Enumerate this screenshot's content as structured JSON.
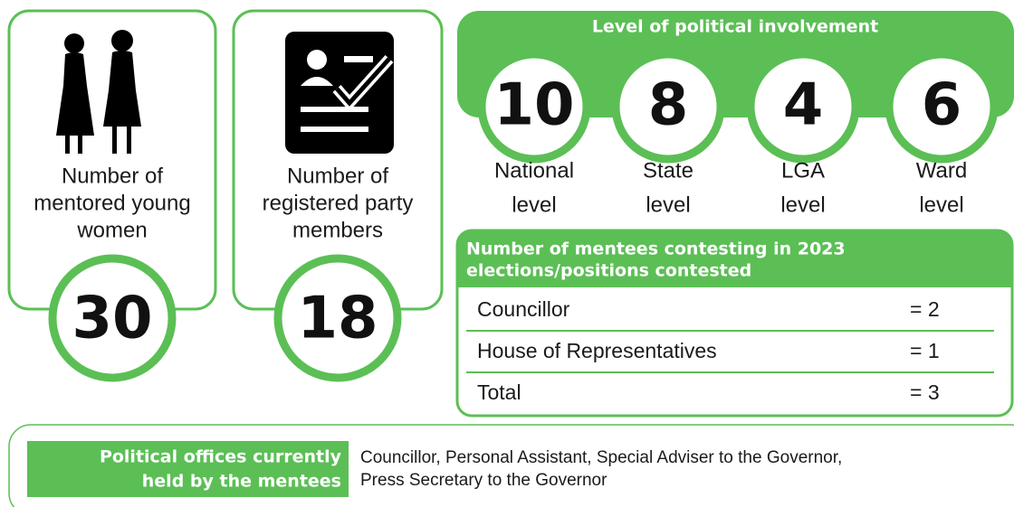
{
  "cards": [
    {
      "label_lines": [
        "Number of",
        "mentored young",
        "women"
      ],
      "value": "30"
    },
    {
      "label_lines": [
        "Number of",
        "registered party",
        "members"
      ],
      "value": "18"
    }
  ],
  "involvement": {
    "title": "Level of political involvement",
    "levels": [
      {
        "value": "10",
        "label_lines": [
          "National",
          "level"
        ]
      },
      {
        "value": "8",
        "label_lines": [
          "State",
          "level"
        ]
      },
      {
        "value": "4",
        "label_lines": [
          "LGA",
          "level"
        ]
      },
      {
        "value": "6",
        "label_lines": [
          "Ward",
          "level"
        ]
      }
    ]
  },
  "table": {
    "title_lines": [
      "Number of mentees contesting in 2023",
      "elections/positions contested"
    ],
    "rows": [
      [
        "Councillor",
        "= 2"
      ],
      [
        "House of Representatives",
        "= 1"
      ],
      [
        "Total",
        "= 3"
      ]
    ]
  },
  "offices": {
    "label_lines": [
      "Political offices currently",
      "held by the mentees"
    ],
    "text_lines": [
      "Councillor, Personal Assistant, Special Adviser to the Governor,",
      "Press Secretary to the Governor"
    ]
  }
}
